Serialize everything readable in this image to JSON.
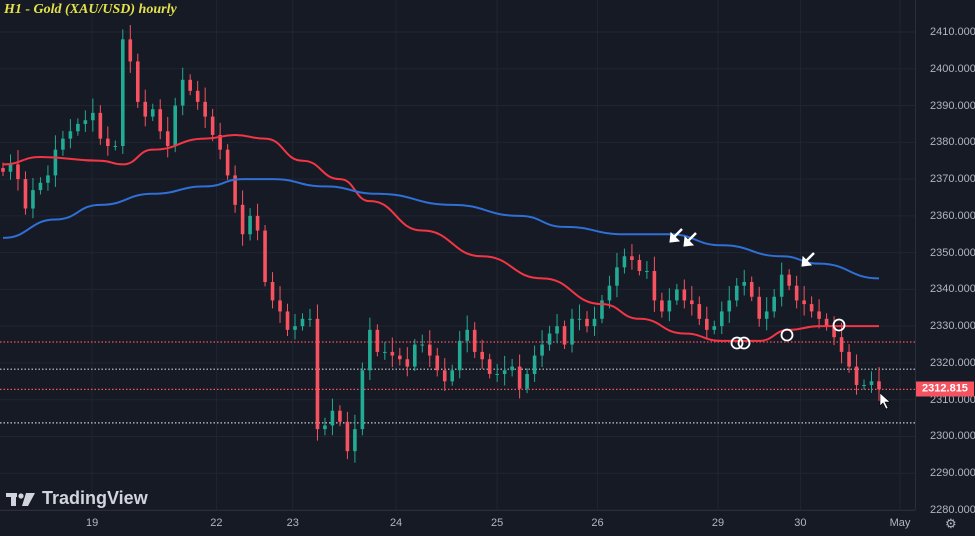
{
  "title": "H1 - Gold (XAU/USD) hourly",
  "logo_text": "TradingView",
  "current_price_label": "2312.815",
  "colors": {
    "background": "#161a25",
    "grid": "#212532",
    "up": "#22ab94",
    "down": "#f7525f",
    "ma_red": "#f23645",
    "ma_blue": "#2f6fd6",
    "level_red": "#f7525f",
    "level_grey": "#c8cad0",
    "title": "#e6e34a"
  },
  "chart_data": {
    "type": "candlestick",
    "title": "H1 - Gold (XAU/USD) hourly",
    "ylim": [
      2280,
      2410
    ],
    "y_ticks": [
      "2280.000",
      "2290.000",
      "2300.000",
      "2310.000",
      "2320.000",
      "2330.000",
      "2340.000",
      "2350.000",
      "2360.000",
      "2370.000",
      "2380.000",
      "2390.000",
      "2400.000",
      "2410.000"
    ],
    "y_tick_values": [
      2280,
      2290,
      2300,
      2310,
      2320,
      2330,
      2340,
      2350,
      2360,
      2370,
      2380,
      2390,
      2400,
      2410
    ],
    "x_ticks": [
      {
        "label": "19",
        "candle": 11.9
      },
      {
        "label": "22",
        "candle": 28.5
      },
      {
        "label": "23",
        "candle": 38.7
      },
      {
        "label": "24",
        "candle": 52.5
      },
      {
        "label": "25",
        "candle": 66
      },
      {
        "label": "26",
        "candle": 79.4
      },
      {
        "label": "29",
        "candle": 95.5
      },
      {
        "label": "30",
        "candle": 106.5
      },
      {
        "label": "May",
        "candle": 119.8
      }
    ],
    "grid": true,
    "closes": [
      2372,
      2374,
      2370,
      2362,
      2367,
      2369,
      2371,
      2378,
      2381,
      2383,
      2385,
      2386,
      2388,
      2381,
      2379,
      2379,
      2408,
      2402,
      2391,
      2387,
      2389,
      2383,
      2379,
      2390,
      2397,
      2394,
      2391,
      2387,
      2382,
      2378,
      2371,
      2363,
      2355,
      2360,
      2356,
      2342,
      2337,
      2334,
      2329,
      2330,
      2332,
      2332,
      2302,
      2303,
      2307,
      2304,
      2296,
      2302,
      2318,
      2329,
      2323,
      2323,
      2322,
      2321,
      2319,
      2325,
      2325,
      2322,
      2318,
      2315,
      2318,
      2326,
      2329,
      2323,
      2321,
      2317,
      2317,
      2318,
      2319,
      2313,
      2317,
      2322,
      2325,
      2328,
      2330,
      2325,
      2332,
      2332,
      2330,
      2332,
      2337,
      2341,
      2346,
      2349,
      2348,
      2345,
      2345,
      2337,
      2334,
      2337,
      2340,
      2337,
      2336,
      2332,
      2329,
      2330,
      2334,
      2337,
      2341,
      2342,
      2338,
      2332,
      2334,
      2338,
      2344,
      2341,
      2337,
      2336,
      2334,
      2332,
      2330,
      2327,
      2323,
      2319,
      2314,
      2314,
      2315,
      2312.815
    ],
    "moving_averages": [
      {
        "color": "red",
        "points": [
          [
            0,
            2374
          ],
          [
            5,
            2376
          ],
          [
            13,
            2375
          ],
          [
            16,
            2374
          ],
          [
            20,
            2378
          ],
          [
            27,
            2381
          ],
          [
            31,
            2382
          ],
          [
            35,
            2381
          ],
          [
            40,
            2375
          ],
          [
            45,
            2370
          ],
          [
            49,
            2364
          ],
          [
            56,
            2356
          ],
          [
            64,
            2349
          ],
          [
            72,
            2343
          ],
          [
            80,
            2336
          ],
          [
            85,
            2332
          ],
          [
            91,
            2328
          ],
          [
            96,
            2326
          ],
          [
            101,
            2326
          ],
          [
            105,
            2329
          ],
          [
            109,
            2330
          ],
          [
            117,
            2330
          ]
        ]
      },
      {
        "color": "blue",
        "points": [
          [
            0,
            2354
          ],
          [
            7,
            2359
          ],
          [
            13,
            2363
          ],
          [
            20,
            2366
          ],
          [
            27,
            2368
          ],
          [
            32,
            2370
          ],
          [
            36,
            2370
          ],
          [
            43,
            2368
          ],
          [
            50,
            2366
          ],
          [
            60,
            2363
          ],
          [
            69,
            2360
          ],
          [
            75,
            2357
          ],
          [
            83,
            2355
          ],
          [
            89,
            2355
          ],
          [
            96,
            2352
          ],
          [
            104,
            2349
          ],
          [
            109,
            2347
          ],
          [
            117,
            2343
          ]
        ]
      }
    ],
    "horizontal_levels": [
      {
        "price": 2325.7,
        "style": "red-dotted"
      },
      {
        "price": 2318.3,
        "style": "grey-dotted"
      },
      {
        "price": 2312.815,
        "style": "red-dotted"
      },
      {
        "price": 2303.7,
        "style": "grey-dotted"
      }
    ]
  }
}
